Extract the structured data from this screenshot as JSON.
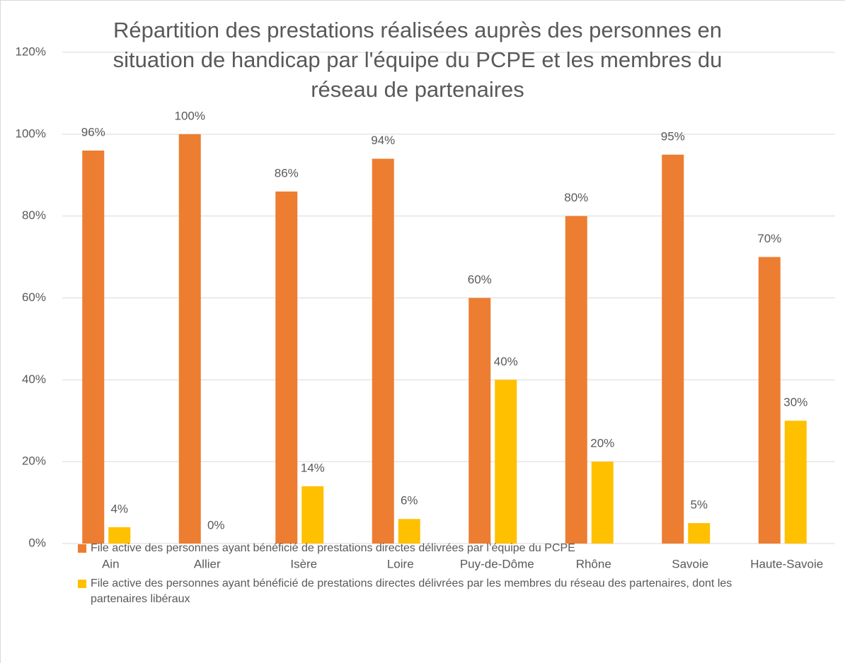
{
  "chart_data": {
    "type": "bar",
    "title": "Répartition des prestations réalisées auprès des personnes en situation de handicap par l'équipe du PCPE et les membres du réseau de partenaires",
    "categories": [
      "Ain",
      "Allier",
      "Isère",
      "Loire",
      "Puy-de-Dôme",
      "Rhône",
      "Savoie",
      "Haute-Savoie"
    ],
    "series": [
      {
        "name": "File active des personnes ayant bénéficié de prestations directes délivrées par l’équipe du PCPE",
        "color": "#ED7D31",
        "values": [
          96,
          100,
          86,
          94,
          60,
          80,
          95,
          70
        ],
        "value_labels": [
          "96%",
          "100%",
          "86%",
          "94%",
          "60%",
          "80%",
          "95%",
          "70%"
        ]
      },
      {
        "name": "File active des personnes ayant bénéficié de prestations directes délivrées par les membres du réseau des partenaires, dont les partenaires libéraux",
        "color": "#FFC000",
        "values": [
          4,
          0,
          14,
          6,
          40,
          20,
          5,
          30
        ],
        "value_labels": [
          "4%",
          "0%",
          "14%",
          "6%",
          "40%",
          "20%",
          "5%",
          "30%"
        ]
      }
    ],
    "ylim": [
      0,
      120
    ],
    "yticks": [
      {
        "value": 0,
        "label": "0%"
      },
      {
        "value": 20,
        "label": "20%"
      },
      {
        "value": 40,
        "label": "40%"
      },
      {
        "value": 60,
        "label": "60%"
      },
      {
        "value": 80,
        "label": "80%"
      },
      {
        "value": 100,
        "label": "100%"
      },
      {
        "value": 120,
        "label": "120%"
      }
    ],
    "grid": true,
    "legend": "bottom"
  }
}
